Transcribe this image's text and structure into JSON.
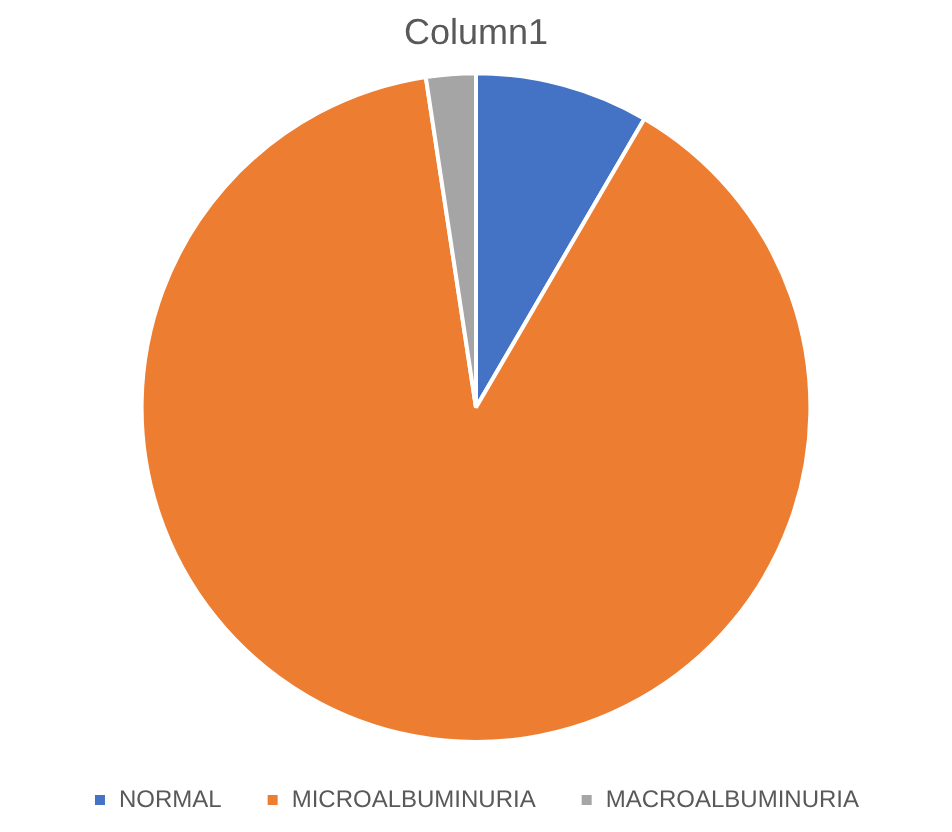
{
  "chart_data": {
    "type": "pie",
    "title": "Column1",
    "categories": [
      "NORMAL",
      "MICROALBUMINURIA",
      "MACROALBUMINURIA"
    ],
    "values": [
      8.4,
      89.2,
      2.4
    ],
    "colors": [
      "#4472c4",
      "#ed7d31",
      "#a5a5a5"
    ],
    "legend": "bottom"
  }
}
